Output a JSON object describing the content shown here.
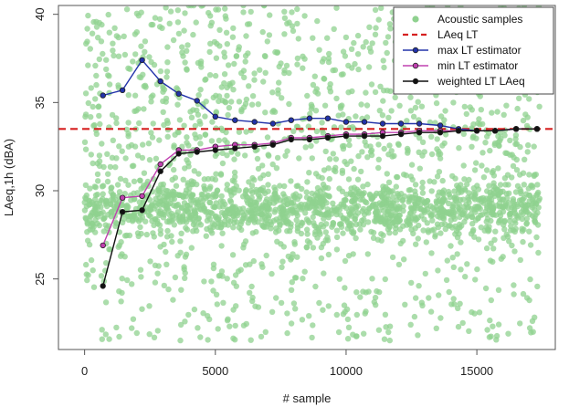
{
  "chart_data": {
    "type": "scatter",
    "title": "",
    "xlabel": "# sample",
    "ylabel": "LAeq,1h (dBA)",
    "xlim": [
      -1000,
      18000
    ],
    "ylim": [
      21,
      40.5
    ],
    "x_ticks": [
      0,
      5000,
      10000,
      15000
    ],
    "y_ticks": [
      25,
      30,
      35,
      40
    ],
    "x_tick_labels": [
      "0",
      "5000",
      "10000",
      "15000"
    ],
    "y_tick_labels": [
      "25",
      "30",
      "35",
      "40"
    ],
    "grid": false,
    "legend_position": "top-right",
    "legend": [
      {
        "label": "Acoustic samples",
        "kind": "point",
        "color": "#8fd18f"
      },
      {
        "label": "LAeq LT",
        "kind": "dashed-line",
        "color": "#d62020"
      },
      {
        "label": "max LT estimator",
        "kind": "line-point",
        "color": "#2233aa"
      },
      {
        "label": "min LT estimator",
        "kind": "line-point",
        "color": "#c040b0"
      },
      {
        "label": "weighted LT LAeq",
        "kind": "line-point",
        "color": "#111111"
      }
    ],
    "scatter": {
      "name": "Acoustic samples",
      "color": "#8fd18f",
      "x_range": [
        0,
        17400
      ],
      "y_range": [
        21.5,
        40.5
      ],
      "dense_band": [
        28,
        30
      ],
      "note": "thousands of densely overlapping samples"
    },
    "reference_line": {
      "name": "LAeq LT",
      "y": 33.5,
      "color": "#d62020"
    },
    "series": [
      {
        "name": "max LT estimator",
        "color": "#2233aa",
        "x": [
          700,
          1450,
          2200,
          2900,
          3600,
          4300,
          5000,
          5750,
          6500,
          7200,
          7900,
          8600,
          9300,
          10000,
          10700,
          11400,
          12100,
          12800,
          13600,
          14300,
          15000,
          15700,
          16500,
          17300
        ],
        "y": [
          35.4,
          35.7,
          37.4,
          36.2,
          35.5,
          35.1,
          34.2,
          34.0,
          33.9,
          33.8,
          34.0,
          34.1,
          34.1,
          33.9,
          33.9,
          33.8,
          33.8,
          33.8,
          33.7,
          33.5,
          33.4,
          33.4,
          33.5,
          33.5
        ]
      },
      {
        "name": "min LT estimator",
        "color": "#c040b0",
        "x": [
          700,
          1450,
          2200,
          2900,
          3600,
          4300,
          5000,
          5750,
          6500,
          7200,
          7900,
          8600,
          9300,
          10000,
          10700,
          11400,
          12100,
          12800,
          13600,
          14300,
          15000,
          15700,
          16500,
          17300
        ],
        "y": [
          26.9,
          29.6,
          29.7,
          31.5,
          32.3,
          32.3,
          32.5,
          32.6,
          32.6,
          32.7,
          33.0,
          33.0,
          33.1,
          33.2,
          33.2,
          33.3,
          33.3,
          33.4,
          33.4,
          33.4,
          33.4,
          33.4,
          33.5,
          33.5
        ]
      },
      {
        "name": "weighted LT LAeq",
        "color": "#111111",
        "x": [
          700,
          1450,
          2200,
          2900,
          3600,
          4300,
          5000,
          5750,
          6500,
          7200,
          7900,
          8600,
          9300,
          10000,
          10700,
          11400,
          12100,
          12800,
          13600,
          14300,
          15000,
          15700,
          16500,
          17300
        ],
        "y": [
          24.6,
          28.8,
          28.9,
          31.1,
          32.1,
          32.2,
          32.3,
          32.4,
          32.5,
          32.6,
          32.9,
          32.9,
          33.0,
          33.1,
          33.1,
          33.1,
          33.2,
          33.3,
          33.3,
          33.4,
          33.4,
          33.4,
          33.5,
          33.5
        ]
      }
    ]
  }
}
